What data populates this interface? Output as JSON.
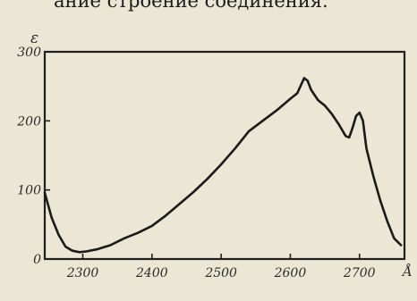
{
  "header_fragment": "ание строение соединения.",
  "chart_data": {
    "type": "line",
    "title": "",
    "xlabel": "Å",
    "ylabel": "ε",
    "xlim": [
      2245,
      2765
    ],
    "ylim": [
      0,
      300
    ],
    "x_ticks": [
      2300,
      2400,
      2500,
      2600,
      2700
    ],
    "y_ticks": [
      0,
      100,
      200,
      300
    ],
    "grid": false,
    "line_color": "#1a1a1a",
    "series": [
      {
        "x": [
          2245,
          2255,
          2265,
          2275,
          2285,
          2295,
          2305,
          2320,
          2340,
          2360,
          2380,
          2400,
          2420,
          2440,
          2460,
          2480,
          2500,
          2520,
          2540,
          2560,
          2580,
          2600,
          2610,
          2620,
          2625,
          2630,
          2640,
          2650,
          2660,
          2670,
          2680,
          2685,
          2690,
          2695,
          2700,
          2705,
          2710,
          2720,
          2730,
          2740,
          2750,
          2760
        ],
        "y": [
          96,
          60,
          35,
          18,
          12,
          10,
          11,
          14,
          20,
          30,
          38,
          48,
          63,
          80,
          97,
          116,
          137,
          160,
          185,
          200,
          215,
          232,
          240,
          262,
          258,
          245,
          230,
          222,
          210,
          195,
          178,
          176,
          190,
          207,
          212,
          200,
          160,
          120,
          85,
          55,
          30,
          20
        ]
      }
    ]
  }
}
